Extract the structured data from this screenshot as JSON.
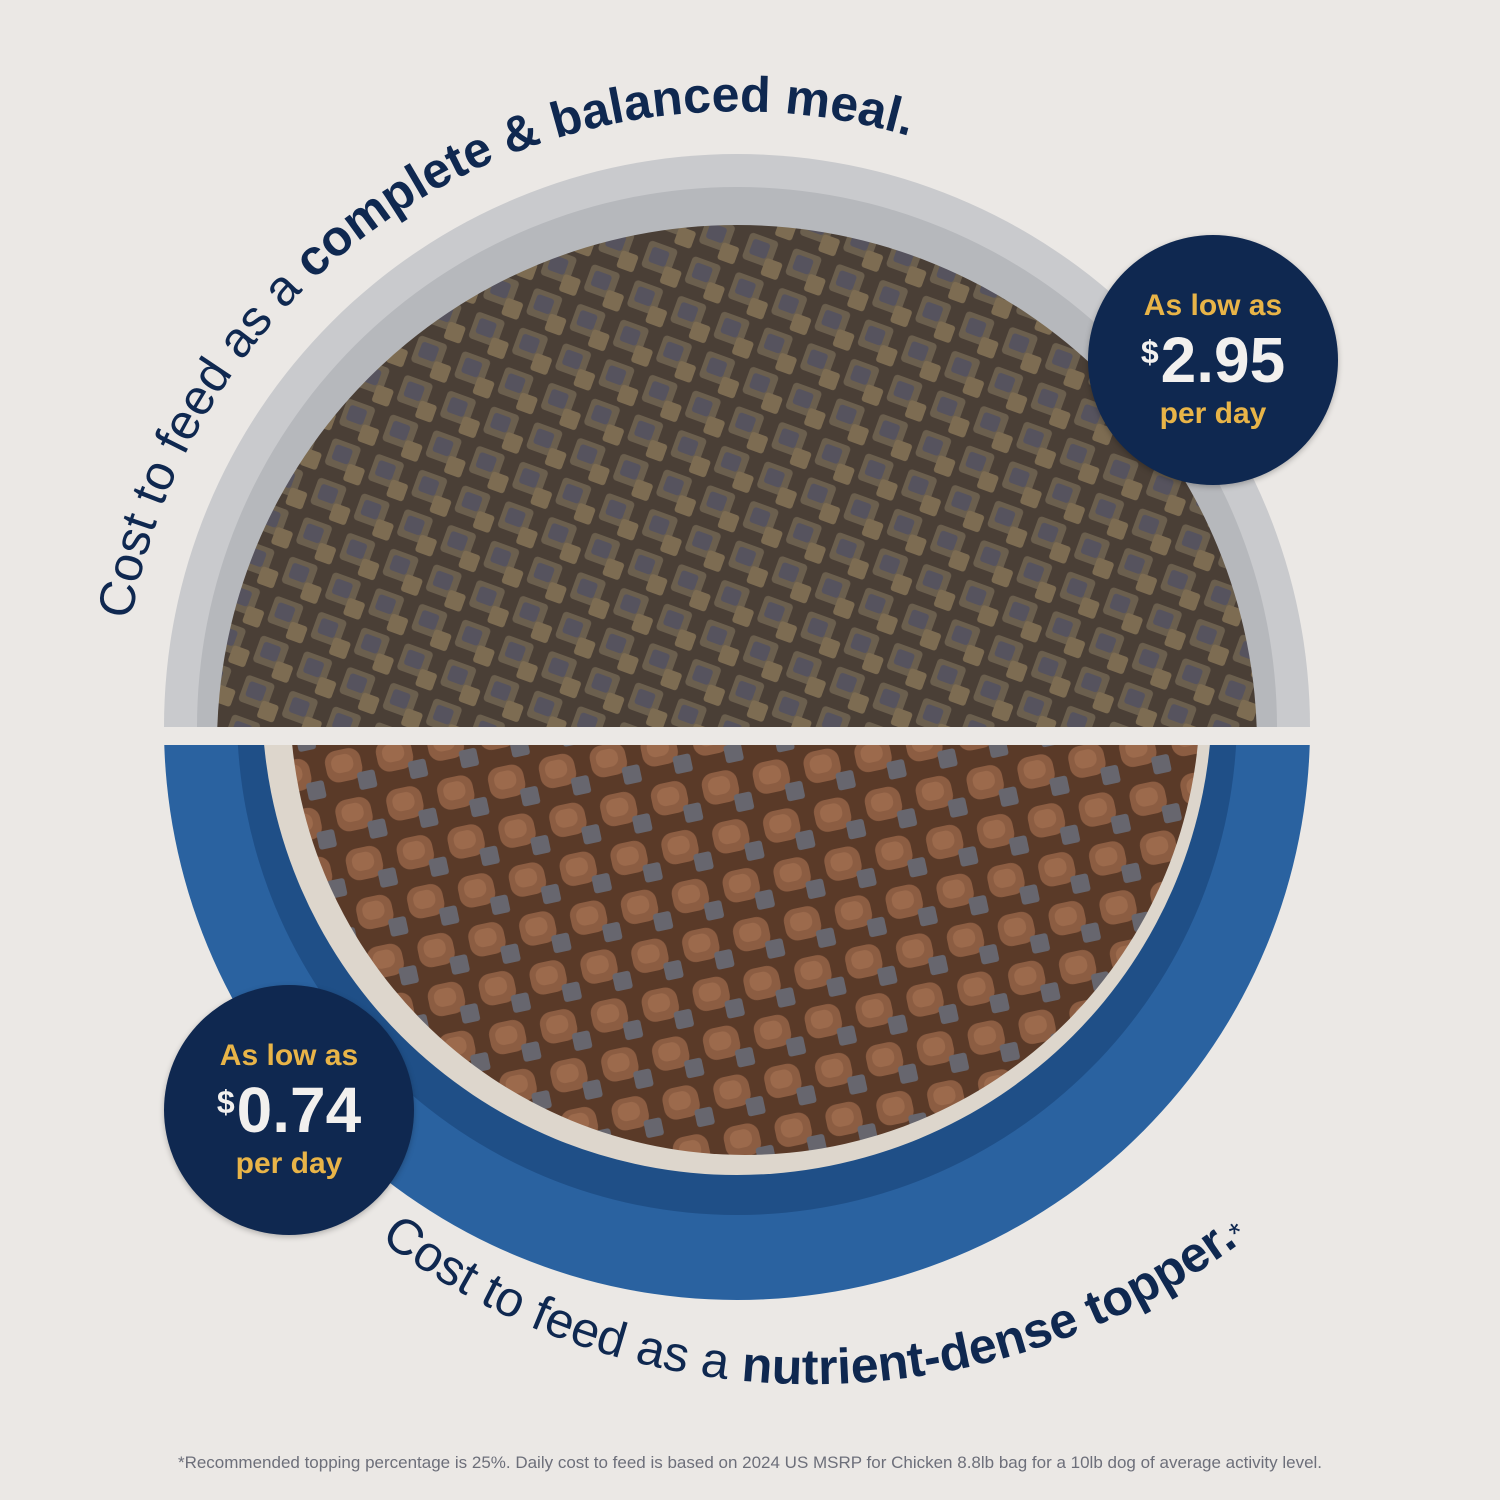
{
  "top": {
    "headline_regular": "Cost to feed as a ",
    "headline_bold": "complete & balanced meal.",
    "badge": {
      "line1": "As low as",
      "currency": "$",
      "price": "2.95",
      "line3": "per day"
    }
  },
  "bottom": {
    "headline_regular": "Cost to feed as a ",
    "headline_bold": "nutrient-dense topper.",
    "asterisk": "*",
    "badge": {
      "line1": "As low as",
      "currency": "$",
      "price": "0.74",
      "line3": "per day"
    }
  },
  "footnote": "*Recommended topping percentage is 25%. Daily cost to feed is based on 2024 US MSRP for Chicken 8.8lb bag for a 10lb dog of average activity level.",
  "colors": {
    "navy": "#0f2850",
    "gold": "#e8b448",
    "background": "#ebe8e5",
    "bowl_blue": "#2a62a0"
  }
}
